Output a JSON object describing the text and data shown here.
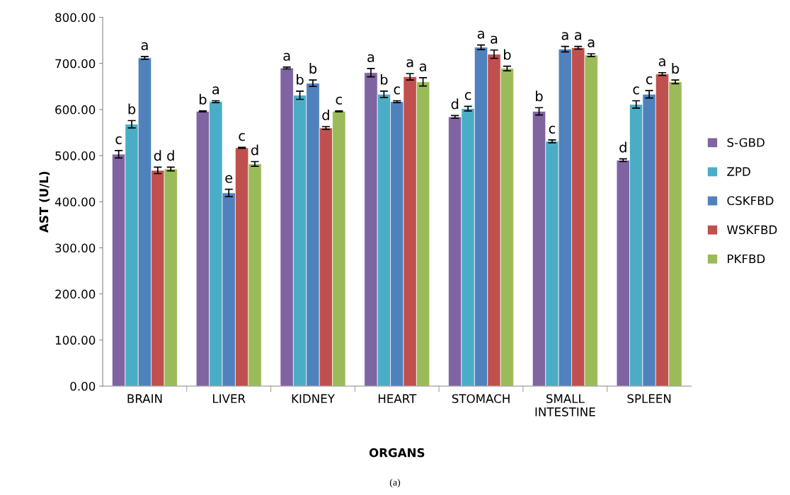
{
  "chart_data": {
    "type": "bar",
    "xlabel": "ORGANS",
    "ylabel": "AST (U/L)",
    "categories": [
      "BRAIN",
      "LIVER",
      "KIDNEY",
      "HEART",
      "STOMACH",
      "SMALL\nINTESTINE",
      "SPLEEN"
    ],
    "series": [
      {
        "name": "S-GBD",
        "color": "#8064a2",
        "values": [
          503,
          596,
          690,
          680,
          584,
          596,
          490
        ],
        "errors": [
          8,
          1,
          2,
          9,
          3,
          8,
          3
        ],
        "value_labels": [
          "c",
          "b",
          "a",
          "a",
          "d",
          "b",
          "d"
        ]
      },
      {
        "name": "ZPD",
        "color": "#4bacc6",
        "values": [
          568,
          617,
          631,
          633,
          602,
          531,
          611
        ],
        "errors": [
          8,
          2,
          9,
          7,
          5,
          3,
          8
        ],
        "value_labels": [
          "b",
          "a",
          "b",
          "b",
          "c",
          "c",
          "c"
        ]
      },
      {
        "name": "CSKFBD",
        "color": "#4f81bd",
        "values": [
          712,
          419,
          657,
          617,
          735,
          731,
          633
        ],
        "errors": [
          3,
          8,
          7,
          2,
          5,
          6,
          8
        ],
        "value_labels": [
          "a",
          "e",
          "b",
          "c",
          "a",
          "a",
          "c"
        ]
      },
      {
        "name": "WSKFBD",
        "color": "#c0504d",
        "values": [
          468,
          517,
          560,
          671,
          720,
          734,
          677
        ],
        "errors": [
          7,
          1,
          3,
          7,
          9,
          3,
          3
        ],
        "value_labels": [
          "d",
          "c",
          "d",
          "a",
          "a",
          "a",
          "a"
        ]
      },
      {
        "name": "PKFBD",
        "color": "#9bbb59",
        "values": [
          471,
          482,
          596,
          660,
          689,
          718,
          660
        ],
        "errors": [
          4,
          5,
          1,
          9,
          5,
          3,
          4
        ],
        "value_labels": [
          "d",
          "d",
          "c",
          "a",
          "b",
          "a",
          "b"
        ]
      }
    ],
    "ylim": [
      0,
      800
    ],
    "yticks": [
      {
        "value": 0,
        "label": "0.00"
      },
      {
        "value": 100,
        "label": "100.00"
      },
      {
        "value": 200,
        "label": "200.00"
      },
      {
        "value": 300,
        "label": "300.00"
      },
      {
        "value": 400,
        "label": "400.00"
      },
      {
        "value": 500,
        "label": "500.00"
      },
      {
        "value": 600,
        "label": "600.00"
      },
      {
        "value": 700,
        "label": "700.00"
      },
      {
        "value": 800,
        "label": "800.00"
      }
    ],
    "grid": false,
    "legend": "right",
    "annotations": [
      "(a)"
    ]
  }
}
